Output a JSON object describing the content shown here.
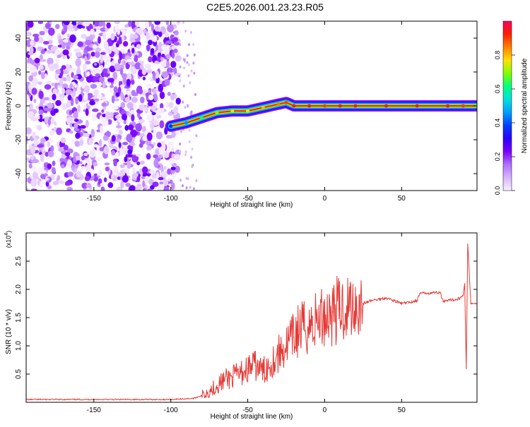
{
  "title": "C2E5.2026.001.23.23.R05",
  "colors": {
    "snr_line": "#e53935",
    "axis": "#000000",
    "colormap": [
      "#f8f0ff",
      "#d9b3ff",
      "#b070ff",
      "#7a00ff",
      "#2a00ff",
      "#0040ff",
      "#00a0ff",
      "#00e0e0",
      "#00ff80",
      "#80ff00",
      "#ffe000",
      "#ff8000",
      "#ff2000",
      "#ff0060"
    ]
  },
  "chart_data": [
    {
      "type": "heatmap",
      "xlabel": "Height of straight line (km)",
      "ylabel": "Frequency (Hz)",
      "xlim": [
        -194,
        99
      ],
      "ylim": [
        -50,
        50
      ],
      "xticks": [
        -150,
        -100,
        -50,
        0,
        50
      ],
      "yticks": [
        -40,
        -20,
        0,
        20,
        40
      ],
      "colorbar": {
        "label": "Normalized spectral amplitude",
        "range": [
          0,
          1
        ],
        "ticks": [
          "0.0",
          "0.2",
          "0.4",
          "0.6",
          "0.8"
        ]
      },
      "noise_region_x": [
        -194,
        -95
      ],
      "ridge": {
        "x": [
          -100,
          -90,
          -80,
          -70,
          -60,
          -50,
          -40,
          -30,
          -25,
          -20,
          -10,
          0,
          10,
          20,
          40,
          60,
          80,
          90,
          99
        ],
        "y": [
          -12,
          -10,
          -7,
          -4,
          -3,
          -3,
          -1,
          1,
          2,
          0,
          0,
          0,
          0,
          0,
          0,
          0,
          0,
          0,
          0
        ],
        "amplitude": [
          0.35,
          0.45,
          0.6,
          0.7,
          0.75,
          0.75,
          0.8,
          0.85,
          0.9,
          0.95,
          0.95,
          0.9,
          0.95,
          0.95,
          0.95,
          0.95,
          0.95,
          0.9,
          0.7
        ]
      }
    },
    {
      "type": "line",
      "xlabel": "Height of straight line (km)",
      "ylabel": "SNR (10 * v/v)",
      "y_multiplier": "(x10",
      "y_multiplier_exp": "4",
      "y_multiplier_close": ")",
      "xlim": [
        -194,
        99
      ],
      "ylim": [
        0,
        3.0
      ],
      "xticks": [
        -150,
        -100,
        -50,
        0,
        50
      ],
      "yticks": [
        0.5,
        1.0,
        1.5,
        2.0,
        2.5
      ],
      "ytick_labels": [
        "0.5",
        "1.0",
        "1.5",
        "2.0",
        "2.5"
      ],
      "series": [
        {
          "x": [
            -194,
            -150,
            -100,
            -85,
            -80,
            -75,
            -70,
            -65,
            -60,
            -55,
            -50,
            -45,
            -40,
            -35,
            -30,
            -25,
            -20,
            -18,
            -15,
            -10,
            -5,
            0,
            5,
            10,
            15,
            20,
            25,
            30,
            40,
            45,
            50,
            55,
            60,
            62,
            70,
            75,
            77,
            80,
            85,
            88,
            90,
            91,
            92,
            93,
            95,
            99
          ],
          "y": [
            0.05,
            0.05,
            0.05,
            0.07,
            0.12,
            0.2,
            0.3,
            0.4,
            0.45,
            0.5,
            0.6,
            0.65,
            0.55,
            0.7,
            0.85,
            1.0,
            1.15,
            1.25,
            1.3,
            1.35,
            1.45,
            1.55,
            1.6,
            1.65,
            1.7,
            1.75,
            1.75,
            1.8,
            1.85,
            1.8,
            1.75,
            1.77,
            1.8,
            1.93,
            1.94,
            1.95,
            1.78,
            1.8,
            1.82,
            1.85,
            1.9,
            2.1,
            0.6,
            2.8,
            1.75,
            1.75
          ]
        }
      ]
    }
  ]
}
